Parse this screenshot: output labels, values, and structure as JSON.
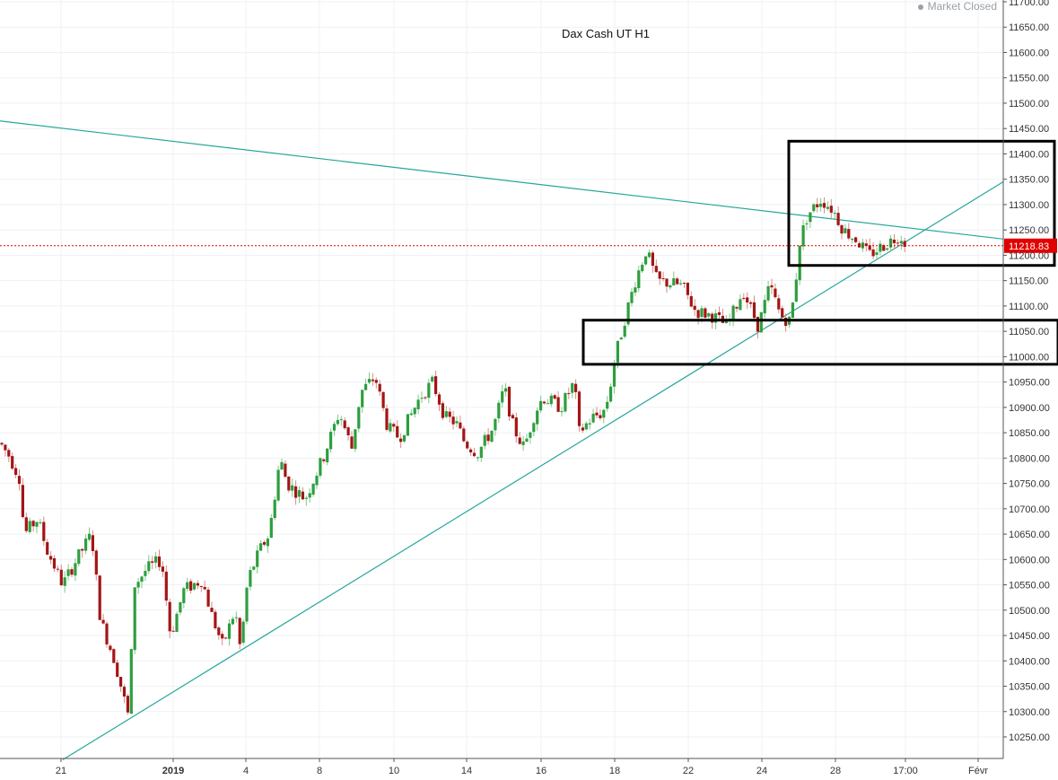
{
  "status": {
    "dot_icon": "status-dot-icon",
    "text": "Market Closed"
  },
  "chart_data": {
    "type": "candlestick",
    "title": "Dax Cash UT H1",
    "ylim": [
      10205,
      11705
    ],
    "y_ticks": [
      10250,
      10300,
      10350,
      10400,
      10450,
      10500,
      10550,
      10600,
      10650,
      10700,
      10750,
      10800,
      10850,
      10900,
      10950,
      11000,
      11050,
      11100,
      11150,
      11200,
      11250,
      11300,
      11350,
      11400,
      11450,
      11500,
      11550,
      11600,
      11650,
      11700
    ],
    "x_labels": [
      {
        "label": "21",
        "bold": false
      },
      {
        "label": "2019",
        "bold": true
      },
      {
        "label": "4",
        "bold": false
      },
      {
        "label": "8",
        "bold": false
      },
      {
        "label": "10",
        "bold": false
      },
      {
        "label": "14",
        "bold": false
      },
      {
        "label": "16",
        "bold": false
      },
      {
        "label": "18",
        "bold": false
      },
      {
        "label": "22",
        "bold": false
      },
      {
        "label": "24",
        "bold": false
      },
      {
        "label": "28",
        "bold": false
      },
      {
        "label": "17:00",
        "bold": false
      },
      {
        "label": "Févr",
        "bold": false
      }
    ],
    "current_price": "11218.83",
    "current_price_value": 11218.83,
    "colors": {
      "up": "#2e9e3e",
      "down": "#a31515",
      "trendline": "#26a69a",
      "price_line": "#e00000",
      "box": "#000000"
    },
    "trendlines": [
      {
        "name": "descending-trendline",
        "from": [
          0,
          11465
        ],
        "to": [
          1118,
          11232
        ]
      },
      {
        "name": "ascending-trendline",
        "from": [
          70,
          10205
        ],
        "to": [
          1118,
          11345
        ]
      }
    ],
    "zones": [
      {
        "name": "upper-rectangle",
        "x": [
          879,
          1175
        ],
        "y": [
          11180,
          11425
        ]
      },
      {
        "name": "lower-rectangle",
        "x": [
          650,
          1179
        ],
        "y": [
          10985,
          11072
        ]
      }
    ],
    "anchors": [
      [
        0,
        10830
      ],
      [
        10,
        10805
      ],
      [
        22,
        10760
      ],
      [
        27,
        10650
      ],
      [
        42,
        10680
      ],
      [
        52,
        10620
      ],
      [
        70,
        10550
      ],
      [
        82,
        10590
      ],
      [
        102,
        10650
      ],
      [
        112,
        10480
      ],
      [
        128,
        10400
      ],
      [
        143,
        10290
      ],
      [
        150,
        10550
      ],
      [
        163,
        10580
      ],
      [
        180,
        10600
      ],
      [
        190,
        10450
      ],
      [
        205,
        10540
      ],
      [
        225,
        10560
      ],
      [
        236,
        10490
      ],
      [
        248,
        10430
      ],
      [
        262,
        10500
      ],
      [
        268,
        10420
      ],
      [
        276,
        10560
      ],
      [
        290,
        10620
      ],
      [
        300,
        10650
      ],
      [
        312,
        10800
      ],
      [
        320,
        10750
      ],
      [
        340,
        10720
      ],
      [
        360,
        10800
      ],
      [
        378,
        10890
      ],
      [
        392,
        10820
      ],
      [
        402,
        10930
      ],
      [
        418,
        10960
      ],
      [
        432,
        10860
      ],
      [
        445,
        10840
      ],
      [
        468,
        10920
      ],
      [
        482,
        10950
      ],
      [
        496,
        10880
      ],
      [
        508,
        10870
      ],
      [
        518,
        10830
      ],
      [
        532,
        10810
      ],
      [
        550,
        10860
      ],
      [
        562,
        10940
      ],
      [
        572,
        10860
      ],
      [
        584,
        10820
      ],
      [
        596,
        10890
      ],
      [
        605,
        10920
      ],
      [
        625,
        10900
      ],
      [
        640,
        10950
      ],
      [
        645,
        10850
      ],
      [
        660,
        10880
      ],
      [
        672,
        10890
      ],
      [
        678,
        10920
      ],
      [
        685,
        10995
      ],
      [
        697,
        11080
      ],
      [
        708,
        11150
      ],
      [
        720,
        11210
      ],
      [
        732,
        11150
      ],
      [
        760,
        11140
      ],
      [
        775,
        11090
      ],
      [
        795,
        11080
      ],
      [
        810,
        11060
      ],
      [
        828,
        11130
      ],
      [
        845,
        11060
      ],
      [
        858,
        11140
      ],
      [
        870,
        11080
      ],
      [
        880,
        11070
      ],
      [
        886,
        11130
      ],
      [
        890,
        11220
      ],
      [
        900,
        11280
      ],
      [
        915,
        11310
      ],
      [
        928,
        11290
      ],
      [
        940,
        11250
      ],
      [
        955,
        11230
      ],
      [
        968,
        11200
      ],
      [
        985,
        11220
      ],
      [
        1003,
        11240
      ],
      [
        1012,
        11218.83
      ]
    ]
  }
}
